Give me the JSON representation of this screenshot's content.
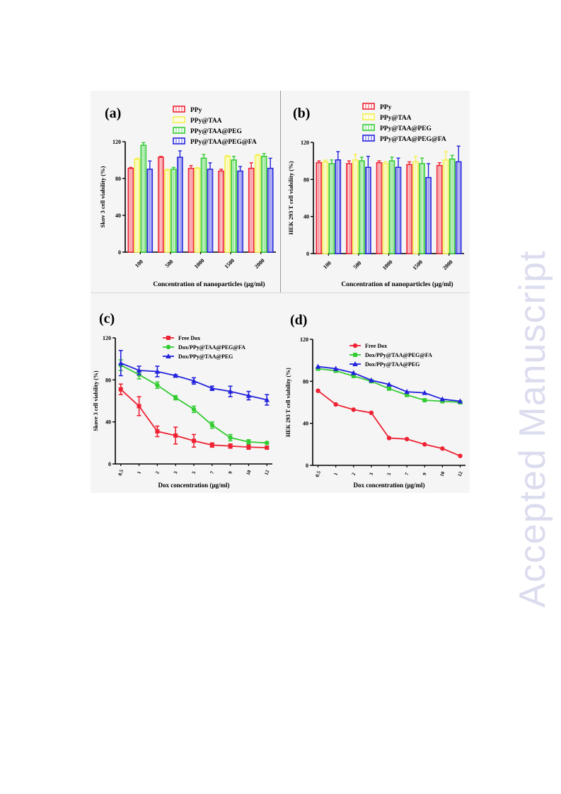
{
  "watermark": "Accepted Manuscript",
  "colors": {
    "red": "#ee2233",
    "yellow": "#f4f04a",
    "green": "#33cc33",
    "blue": "#2222dd",
    "gray_bg": "#f5f5f5"
  },
  "chart_data": [
    {
      "type": "bar",
      "panel_label": "(a)",
      "xlabel": "Concentration of nanoparticles (μg/ml)",
      "ylabel": "Skov 3 cell viability (%)",
      "categories": [
        "100",
        "500",
        "1000",
        "1500",
        "2000"
      ],
      "ylim": [
        0,
        120
      ],
      "yticks": [
        "0",
        "40",
        "80",
        "120"
      ],
      "legend_position": "top-right",
      "series": [
        {
          "name": "PPy",
          "values": [
            91,
            103,
            91,
            88,
            91
          ],
          "errors": [
            1,
            1,
            3,
            2,
            6
          ]
        },
        {
          "name": "PPy@TAA",
          "values": [
            101,
            89,
            91,
            104,
            105
          ],
          "errors": [
            1,
            1,
            1,
            1,
            1
          ]
        },
        {
          "name": "PPy@TAA@PEG",
          "values": [
            116,
            90,
            102,
            100,
            104
          ],
          "errors": [
            3,
            2,
            4,
            4,
            3
          ]
        },
        {
          "name": "PPy@TAA@PEG@FA",
          "values": [
            90,
            103,
            90,
            88,
            91
          ],
          "errors": [
            9,
            7,
            7,
            5,
            11
          ]
        }
      ]
    },
    {
      "type": "bar",
      "panel_label": "(b)",
      "xlabel": "Concentration of nanoparticles (μg/ml)",
      "ylabel": "HEK 293 T  cell viability (%)",
      "categories": [
        "100",
        "500",
        "1000",
        "1500",
        "2000"
      ],
      "ylim": [
        0,
        120
      ],
      "yticks": [
        "0",
        "40",
        "80",
        "120"
      ],
      "legend_position": "top-right",
      "series": [
        {
          "name": "PPy",
          "values": [
            98,
            97,
            98,
            96,
            95
          ],
          "errors": [
            2,
            3,
            2,
            3,
            3
          ]
        },
        {
          "name": "PPy@TAA",
          "values": [
            99,
            101,
            97,
            99,
            101
          ],
          "errors": [
            2,
            6,
            2,
            6,
            9
          ]
        },
        {
          "name": "PPy@TAA@PEG",
          "values": [
            97,
            100,
            100,
            97,
            102
          ],
          "errors": [
            4,
            4,
            4,
            6,
            4
          ]
        },
        {
          "name": "PPy@TAA@PEG@FA",
          "values": [
            101,
            93,
            93,
            82,
            99
          ],
          "errors": [
            9,
            12,
            10,
            15,
            17
          ]
        }
      ]
    },
    {
      "type": "line",
      "panel_label": "(c)",
      "xlabel": "Dox concentration (μg/ml)",
      "ylabel": "Skove 3  cell viability (%)",
      "x": [
        "0.5",
        "1",
        "2",
        "3",
        "5",
        "7",
        "9",
        "10",
        "12"
      ],
      "ylim": [
        0,
        120
      ],
      "yticks": [
        "0",
        "40",
        "80",
        "120"
      ],
      "legend_position": "top-right",
      "series": [
        {
          "name": "Free Dox",
          "marker": "square",
          "values": [
            71,
            55,
            31,
            27,
            22,
            18,
            17,
            16,
            15.5
          ],
          "errors": [
            5,
            9,
            5,
            8,
            6,
            2,
            2,
            2,
            1
          ]
        },
        {
          "name": "Dox/PPy@TAA@PEG@FA",
          "marker": "circle",
          "values": [
            94,
            85,
            75,
            63,
            52,
            37,
            25,
            21,
            20
          ],
          "errors": [
            5,
            4,
            3,
            2,
            3,
            3,
            3,
            2,
            1
          ]
        },
        {
          "name": "Dox/PPy@TAA@PEG",
          "marker": "triangle",
          "values": [
            96,
            89,
            88,
            84,
            79,
            72,
            69,
            65,
            61
          ],
          "errors": [
            12,
            4,
            5,
            1,
            3,
            2,
            5,
            4,
            5
          ]
        }
      ]
    },
    {
      "type": "line",
      "panel_label": "(d)",
      "xlabel": "Dox concentration (μg/ml)",
      "ylabel": "HEK 293 T  cell viability (%)",
      "x": [
        "0.5",
        "1",
        "2",
        "3",
        "5",
        "7",
        "9",
        "10",
        "12"
      ],
      "ylim": [
        0,
        120
      ],
      "yticks": [
        "0",
        "40",
        "80",
        "120"
      ],
      "legend_position": "top-right",
      "series": [
        {
          "name": "Free Dox",
          "marker": "circle",
          "values": [
            71,
            58,
            53,
            50,
            26,
            25,
            20,
            16,
            9
          ]
        },
        {
          "name": "Dox/PPy@TAA@PEG@FA",
          "marker": "square",
          "values": [
            92,
            90,
            85,
            80,
            73,
            67,
            62,
            61,
            60
          ]
        },
        {
          "name": "Dox/PPy@TAA@PEG",
          "marker": "triangle",
          "values": [
            94,
            92,
            88,
            81,
            77,
            70,
            69,
            63,
            61
          ]
        }
      ]
    }
  ]
}
